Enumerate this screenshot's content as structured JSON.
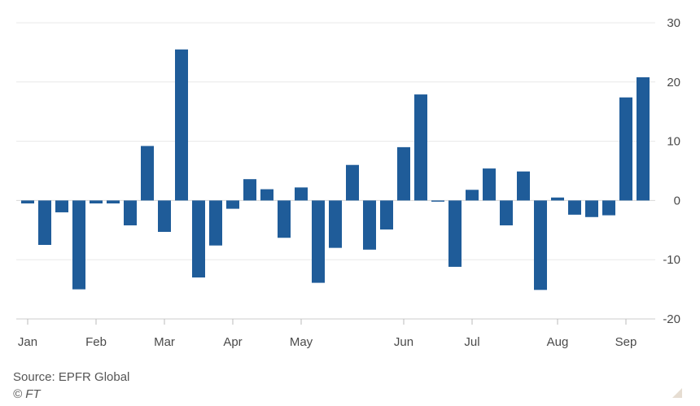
{
  "chart_data": {
    "type": "bar",
    "title": "",
    "xlabel": "",
    "ylabel": "",
    "ylim": [
      -20,
      30
    ],
    "yticks": [
      30,
      20,
      10,
      0,
      -10,
      -20
    ],
    "y_axis_side": "right",
    "grid": true,
    "bar_color": "#1f5c99",
    "x_tick_labels": [
      "Jan",
      "Feb",
      "Mar",
      "Apr",
      "May",
      "Jun",
      "Jul",
      "Aug",
      "Sep"
    ],
    "x_tick_bar_index": [
      0,
      4,
      8,
      12,
      16,
      22,
      26,
      31,
      35
    ],
    "values": [
      -0.5,
      -7.5,
      -2,
      -15,
      -0.5,
      -0.5,
      -4.2,
      9.2,
      -5.3,
      25.5,
      -13,
      -7.6,
      -1.4,
      3.6,
      1.9,
      -6.3,
      2.2,
      -13.9,
      -8,
      6,
      -8.3,
      -4.9,
      9,
      17.9,
      -0.2,
      -11.2,
      1.8,
      5.4,
      -4.2,
      4.9,
      -15.1,
      0.5,
      -2.4,
      -2.8,
      -2.5,
      17.4,
      20.8
    ]
  },
  "footer": {
    "source": "Source: EPFR Global",
    "credit": "© FT"
  }
}
